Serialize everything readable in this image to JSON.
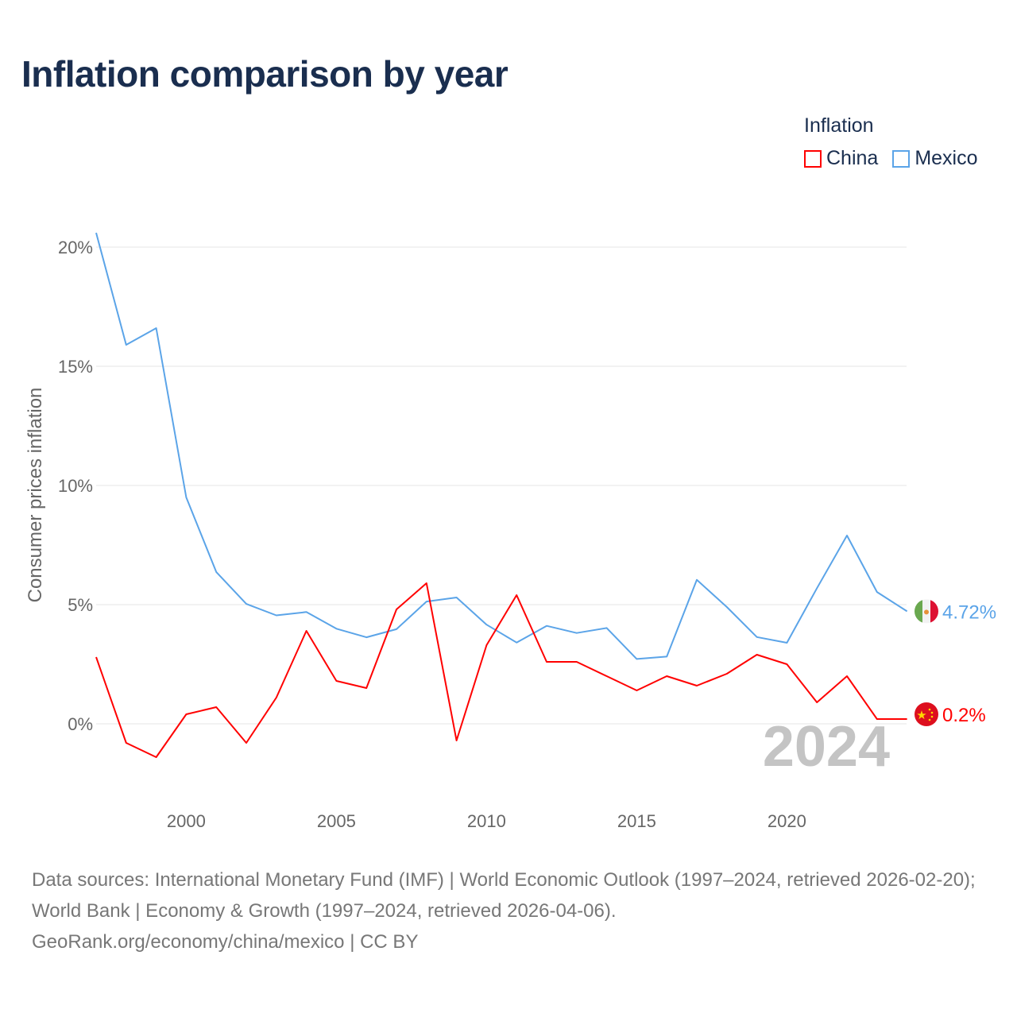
{
  "chart_data": {
    "type": "line",
    "title": "Inflation comparison by year",
    "ylabel": "Consumer prices inflation",
    "xlabel": "",
    "legend_title": "Inflation",
    "legend_position": "top-right",
    "x": [
      1997,
      1998,
      1999,
      2000,
      2001,
      2002,
      2003,
      2004,
      2005,
      2006,
      2007,
      2008,
      2009,
      2010,
      2011,
      2012,
      2013,
      2014,
      2015,
      2016,
      2017,
      2018,
      2019,
      2020,
      2021,
      2022,
      2023,
      2024
    ],
    "xlim": [
      1997,
      2024
    ],
    "ylim": [
      -3,
      21
    ],
    "x_ticks": [
      2000,
      2005,
      2010,
      2015,
      2020
    ],
    "x_tick_labels": [
      "2000",
      "2005",
      "2010",
      "2015",
      "2020"
    ],
    "y_ticks": [
      0,
      5,
      10,
      15,
      20
    ],
    "y_tick_labels": [
      "0%",
      "5%",
      "10%",
      "15%",
      "20%"
    ],
    "grid": true,
    "year_watermark": "2024",
    "series": [
      {
        "name": "China",
        "color": "#ff0000",
        "end_label": "0.2%",
        "values": [
          2.8,
          -0.8,
          -1.4,
          0.4,
          0.7,
          -0.8,
          1.1,
          3.9,
          1.8,
          1.5,
          4.8,
          5.9,
          -0.7,
          3.3,
          5.4,
          2.6,
          2.6,
          2.0,
          1.4,
          2.0,
          1.6,
          2.1,
          2.9,
          2.5,
          0.9,
          2.0,
          0.2,
          0.2
        ]
      },
      {
        "name": "Mexico",
        "color": "#5ba4e8",
        "end_label": "4.72%",
        "values": [
          20.6,
          15.9,
          16.6,
          9.5,
          6.37,
          5.03,
          4.55,
          4.69,
          3.99,
          3.63,
          3.97,
          5.13,
          5.3,
          4.16,
          3.41,
          4.11,
          3.81,
          4.02,
          2.72,
          2.82,
          6.04,
          4.9,
          3.64,
          3.4,
          5.69,
          7.9,
          5.53,
          4.72
        ]
      }
    ]
  },
  "footer": {
    "sources": "Data sources: International Monetary Fund (IMF) | World Economic Outlook (1997–2024, retrieved 2026-02-20); World Bank | Economy & Growth (1997–2024, retrieved 2026-04-06).",
    "link": "GeoRank.org/economy/china/mexico | CC BY"
  }
}
